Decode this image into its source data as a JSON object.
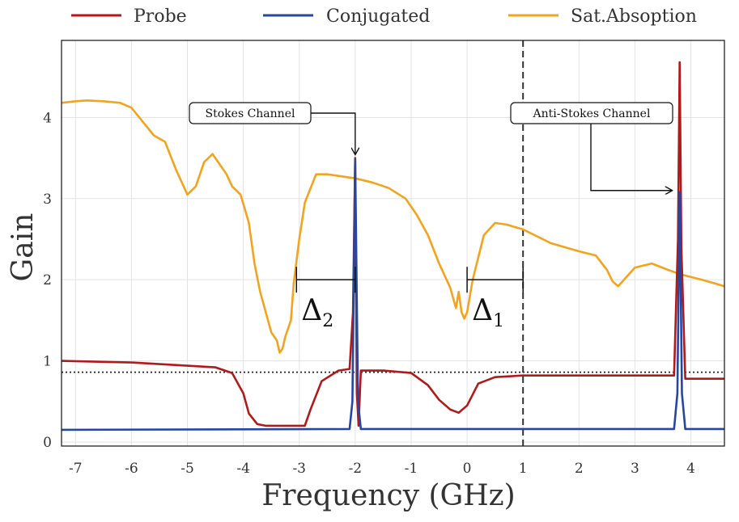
{
  "chart_data": {
    "type": "line",
    "xlabel": "Frequency (GHz)",
    "ylabel": "Gain",
    "xlim": [
      -7.25,
      4.6
    ],
    "ylim": [
      -0.05,
      4.95
    ],
    "xticks": [
      -7,
      -6,
      -5,
      -4,
      -3,
      -2,
      -1,
      0,
      1,
      2,
      3,
      4
    ],
    "yticks": [
      0,
      1,
      2,
      3,
      4
    ],
    "grid": true,
    "legend_position": "top",
    "series": [
      {
        "name": "Probe",
        "color": "#b11a1a",
        "x": [
          -7.25,
          -6.0,
          -5.5,
          -4.5,
          -4.2,
          -4.0,
          -3.9,
          -3.75,
          -3.6,
          -3.2,
          -2.9,
          -2.8,
          -2.6,
          -2.3,
          -2.1,
          -2.04,
          -2.0,
          -1.97,
          -1.94,
          -1.9,
          -1.5,
          -1.0,
          -0.7,
          -0.5,
          -0.3,
          -0.15,
          0.0,
          0.2,
          0.5,
          1.0,
          2.0,
          3.0,
          3.7,
          3.77,
          3.8,
          3.83,
          3.9,
          4.6
        ],
        "y": [
          1.0,
          0.98,
          0.96,
          0.92,
          0.85,
          0.6,
          0.35,
          0.22,
          0.2,
          0.2,
          0.2,
          0.4,
          0.75,
          0.88,
          0.9,
          1.6,
          3.5,
          0.6,
          0.2,
          0.88,
          0.88,
          0.85,
          0.7,
          0.52,
          0.4,
          0.36,
          0.45,
          0.72,
          0.8,
          0.82,
          0.82,
          0.82,
          0.82,
          2.5,
          4.68,
          2.4,
          0.78,
          0.78
        ]
      },
      {
        "name": "Conjugated",
        "color": "#2547a0",
        "x": [
          -7.25,
          -2.1,
          -2.05,
          -2.0,
          -1.95,
          -1.9,
          3.7,
          3.76,
          3.8,
          3.84,
          3.9,
          4.6
        ],
        "y": [
          0.15,
          0.16,
          0.5,
          3.48,
          0.5,
          0.16,
          0.16,
          0.6,
          3.08,
          0.6,
          0.16,
          0.16
        ]
      },
      {
        "name": "Sat.Absoption",
        "color": "#f5a31f",
        "x": [
          -7.25,
          -7.0,
          -6.8,
          -6.5,
          -6.2,
          -6.0,
          -5.8,
          -5.6,
          -5.4,
          -5.2,
          -5.0,
          -4.85,
          -4.7,
          -4.55,
          -4.45,
          -4.3,
          -4.2,
          -4.05,
          -3.9,
          -3.8,
          -3.7,
          -3.6,
          -3.5,
          -3.4,
          -3.35,
          -3.3,
          -3.25,
          -3.15,
          -3.1,
          -3.0,
          -2.9,
          -2.7,
          -2.5,
          -2.3,
          -2.0,
          -1.7,
          -1.4,
          -1.1,
          -0.9,
          -0.7,
          -0.5,
          -0.3,
          -0.2,
          -0.15,
          -0.1,
          -0.05,
          0.0,
          0.1,
          0.3,
          0.5,
          0.7,
          1.0,
          1.5,
          2.0,
          2.3,
          2.5,
          2.6,
          2.7,
          3.0,
          3.3,
          3.6,
          3.8,
          4.2,
          4.6
        ],
        "y": [
          4.18,
          4.2,
          4.21,
          4.2,
          4.18,
          4.12,
          3.95,
          3.78,
          3.7,
          3.35,
          3.05,
          3.15,
          3.45,
          3.55,
          3.45,
          3.3,
          3.15,
          3.05,
          2.7,
          2.2,
          1.85,
          1.6,
          1.35,
          1.25,
          1.1,
          1.15,
          1.3,
          1.5,
          1.95,
          2.5,
          2.95,
          3.3,
          3.3,
          3.28,
          3.25,
          3.2,
          3.13,
          3.0,
          2.8,
          2.55,
          2.2,
          1.9,
          1.65,
          1.85,
          1.6,
          1.52,
          1.6,
          2.0,
          2.55,
          2.7,
          2.68,
          2.62,
          2.45,
          2.35,
          2.3,
          2.12,
          1.98,
          1.92,
          2.15,
          2.2,
          2.12,
          2.07,
          2.0,
          1.92
        ]
      }
    ],
    "reference_lines": [
      {
        "type": "horizontal",
        "y": 0.86,
        "style": "dotted",
        "color": "#222222"
      },
      {
        "type": "vertical",
        "x": 1.0,
        "style": "dashed",
        "color": "#333333"
      }
    ],
    "annotations": [
      {
        "text": "Stokes Channel",
        "arrow_to": [
          -2.0,
          3.55
        ]
      },
      {
        "text": "Anti-Stokes Channel",
        "arrow_to": [
          3.8,
          3.1
        ]
      }
    ],
    "brackets": [
      {
        "label": "Δ",
        "subscript": "2",
        "x_start": -3.05,
        "x_end": -2.0,
        "y": 2.0
      },
      {
        "label": "Δ",
        "subscript": "1",
        "x_start": 0.0,
        "x_end": 1.0,
        "y": 2.0
      }
    ]
  }
}
